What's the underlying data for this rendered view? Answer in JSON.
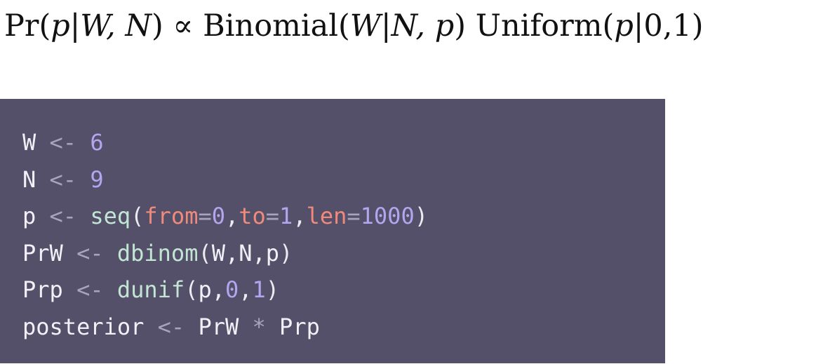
{
  "formula": {
    "lhs_prefix": "Pr(",
    "lhs_p": "p",
    "bar": "|",
    "lhs_args": "W, N",
    "lhs_close": ")",
    "proportional": " ∝ ",
    "binom_prefix": "Binomial(",
    "binom_w": "W",
    "binom_bar": "|",
    "binom_args": "N, p",
    "binom_close": ")",
    "space": " ",
    "unif_prefix": "Uniform(",
    "unif_p": "p",
    "unif_bar": "|",
    "unif_args": "0,1",
    "unif_close": ")"
  },
  "code": {
    "lines": [
      {
        "tokens": [
          {
            "t": "W",
            "k": "id"
          },
          {
            "t": " ",
            "k": "id"
          },
          {
            "t": "<-",
            "k": "op"
          },
          {
            "t": " ",
            "k": "id"
          },
          {
            "t": "6",
            "k": "num"
          }
        ]
      },
      {
        "tokens": [
          {
            "t": "N",
            "k": "id"
          },
          {
            "t": " ",
            "k": "id"
          },
          {
            "t": "<-",
            "k": "op"
          },
          {
            "t": " ",
            "k": "id"
          },
          {
            "t": "9",
            "k": "num"
          }
        ]
      },
      {
        "tokens": [
          {
            "t": "p",
            "k": "id"
          },
          {
            "t": " ",
            "k": "id"
          },
          {
            "t": "<-",
            "k": "op"
          },
          {
            "t": " ",
            "k": "id"
          },
          {
            "t": "seq",
            "k": "fn"
          },
          {
            "t": "(",
            "k": "punct"
          },
          {
            "t": "from",
            "k": "arg"
          },
          {
            "t": "=",
            "k": "op"
          },
          {
            "t": "0",
            "k": "num"
          },
          {
            "t": ",",
            "k": "punct"
          },
          {
            "t": "to",
            "k": "arg"
          },
          {
            "t": "=",
            "k": "op"
          },
          {
            "t": "1",
            "k": "num"
          },
          {
            "t": ",",
            "k": "punct"
          },
          {
            "t": "len",
            "k": "arg"
          },
          {
            "t": "=",
            "k": "op"
          },
          {
            "t": "1000",
            "k": "num"
          },
          {
            "t": ")",
            "k": "punct"
          }
        ]
      },
      {
        "tokens": [
          {
            "t": "PrW",
            "k": "id"
          },
          {
            "t": " ",
            "k": "id"
          },
          {
            "t": "<-",
            "k": "op"
          },
          {
            "t": " ",
            "k": "id"
          },
          {
            "t": "dbinom",
            "k": "fn"
          },
          {
            "t": "(",
            "k": "punct"
          },
          {
            "t": "W,N,p",
            "k": "id"
          },
          {
            "t": ")",
            "k": "punct"
          }
        ]
      },
      {
        "tokens": [
          {
            "t": "Prp",
            "k": "id"
          },
          {
            "t": " ",
            "k": "id"
          },
          {
            "t": "<-",
            "k": "op"
          },
          {
            "t": " ",
            "k": "id"
          },
          {
            "t": "dunif",
            "k": "fn"
          },
          {
            "t": "(",
            "k": "punct"
          },
          {
            "t": "p,",
            "k": "id"
          },
          {
            "t": "0",
            "k": "num"
          },
          {
            "t": ",",
            "k": "punct"
          },
          {
            "t": "1",
            "k": "num"
          },
          {
            "t": ")",
            "k": "punct"
          }
        ]
      },
      {
        "tokens": [
          {
            "t": "posterior",
            "k": "id"
          },
          {
            "t": " ",
            "k": "id"
          },
          {
            "t": "<-",
            "k": "op"
          },
          {
            "t": " ",
            "k": "id"
          },
          {
            "t": "PrW",
            "k": "id"
          },
          {
            "t": " ",
            "k": "id"
          },
          {
            "t": "*",
            "k": "op"
          },
          {
            "t": " ",
            "k": "id"
          },
          {
            "t": "Prp",
            "k": "id"
          }
        ]
      }
    ]
  }
}
